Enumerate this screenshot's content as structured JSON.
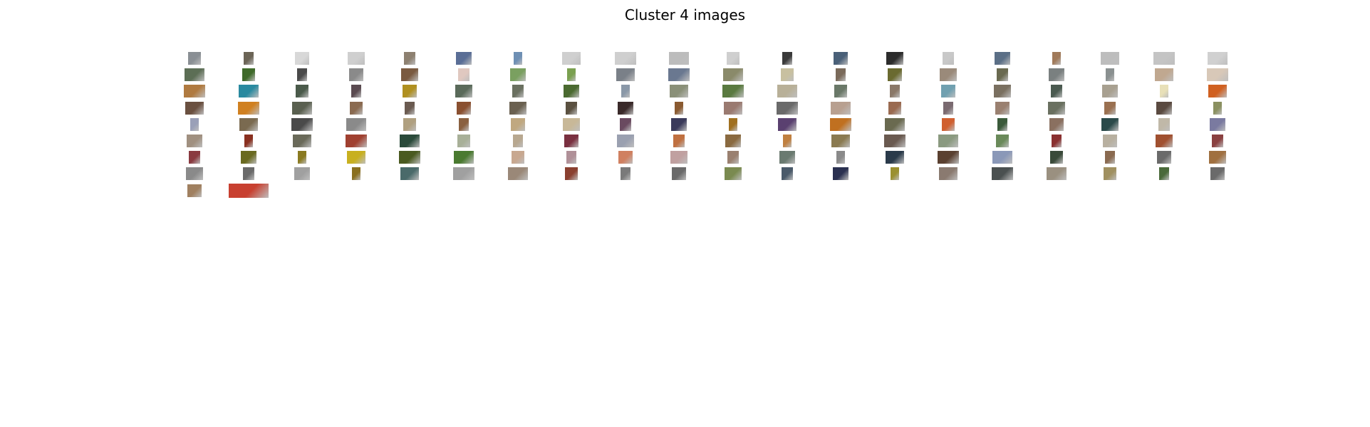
{
  "figure": {
    "title": "Cluster 4 images"
  },
  "thumbnail_colors": [
    [
      "#8a8f94",
      "#6b6456",
      "#d8d8d8",
      "#cfcfcf",
      "#8d8070",
      "#5a6e96",
      "#6e8fb4",
      "#cfcfcf",
      "#cfcfcf",
      "#bcbcbc",
      "#cfcfcf",
      "#3a3a3a",
      "#4a6078",
      "#2c2c2c",
      "#c8c8c8",
      "#5b6f86",
      "#a07a5a",
      "#bdbdbd",
      "#c4c4c4",
      "#d0d0d0"
    ],
    [
      "#5c6e55",
      "#3f6a2a",
      "#4a4a4a",
      "#8a8a8a",
      "#7a5a40",
      "#e0c8c0",
      "#7aa060",
      "#7aa050",
      "#7a8088",
      "#6a7890",
      "#8a8a6a",
      "#c8c0a0",
      "#7a6a5a",
      "#6a6a30",
      "#9a8a7a",
      "#6a6a50",
      "#7a8080",
      "#8a9090",
      "#c0a890",
      "#d8c8b8"
    ],
    [
      "#b07a40",
      "#2a8aa0",
      "#4a5a4a",
      "#5a4a50",
      "#b09020",
      "#5a6a5a",
      "#6a7060",
      "#4a6a30",
      "#8a98a8",
      "#8a9078",
      "#5a7a40",
      "#b8b098",
      "#6a7868",
      "#8a7868",
      "#70a0b0",
      "#7a7060",
      "#4a5a50",
      "#a8a090",
      "#e8e0b8",
      "#d06020"
    ],
    [
      "#6a5040",
      "#d08020",
      "#5a6050",
      "#8a6a50",
      "#6a5a50",
      "#8a5030",
      "#6a6050",
      "#5a5040",
      "#3a2a2a",
      "#8a5a30",
      "#9a7a70",
      "#6a6a6a",
      "#b8a090",
      "#9a6a50",
      "#7a6a70",
      "#9a8070",
      "#6a7060",
      "#9a7050",
      "#5a4a40",
      "#8a9060"
    ],
    [
      "#9aa0b8",
      "#7a6a50",
      "#4a4a4a",
      "#8a8a8a",
      "#b0a080",
      "#8a6040",
      "#c0a880",
      "#c8b898",
      "#6a4a60",
      "#3a3a5a",
      "#a07020",
      "#5a4070",
      "#c07020",
      "#6a6a50",
      "#d06030",
      "#3a5a3a",
      "#8a7060",
      "#2a4a4a",
      "#c0b8a8",
      "#7a7aa0"
    ],
    [
      "#a09080",
      "#8a3020",
      "#6a6a5a",
      "#a04030",
      "#2a4a3a",
      "#a8b098",
      "#b8a890",
      "#7a3040",
      "#9aa0b0",
      "#c07040",
      "#8a6a40",
      "#c08040",
      "#8a7a50",
      "#6a5a50",
      "#8a9a80",
      "#6a8a5a",
      "#8a3030",
      "#b8b0a0",
      "#a05030",
      "#8a4040"
    ],
    [
      "#8a3a40",
      "#6a6a20",
      "#8a7a20",
      "#c8b020",
      "#4a5a20",
      "#4a7a30",
      "#c8a890",
      "#b09098",
      "#d08060",
      "#c0a0a0",
      "#9a8070",
      "#6a7a70",
      "#8a8a8a",
      "#2a3a4a",
      "#5a4030",
      "#8a98b8",
      "#3a4a3a",
      "#8a6a50",
      "#6a6a6a",
      "#a07040"
    ],
    [
      "#8a8a8a",
      "#6a6a6a",
      "#a0a0a0",
      "#8a7020",
      "#4a6a6a",
      "#a0a0a0",
      "#9a8878",
      "#8a4030",
      "#7a7a7a",
      "#6a6a6a",
      "#7a8a50",
      "#4a5a6a",
      "#2a3050",
      "#9a9030",
      "#8a7a70",
      "#4a5050",
      "#9a9080",
      "#a09060",
      "#4a6a3a",
      "#6a6a6a"
    ],
    [
      "#a08060",
      "#c84030"
    ]
  ]
}
